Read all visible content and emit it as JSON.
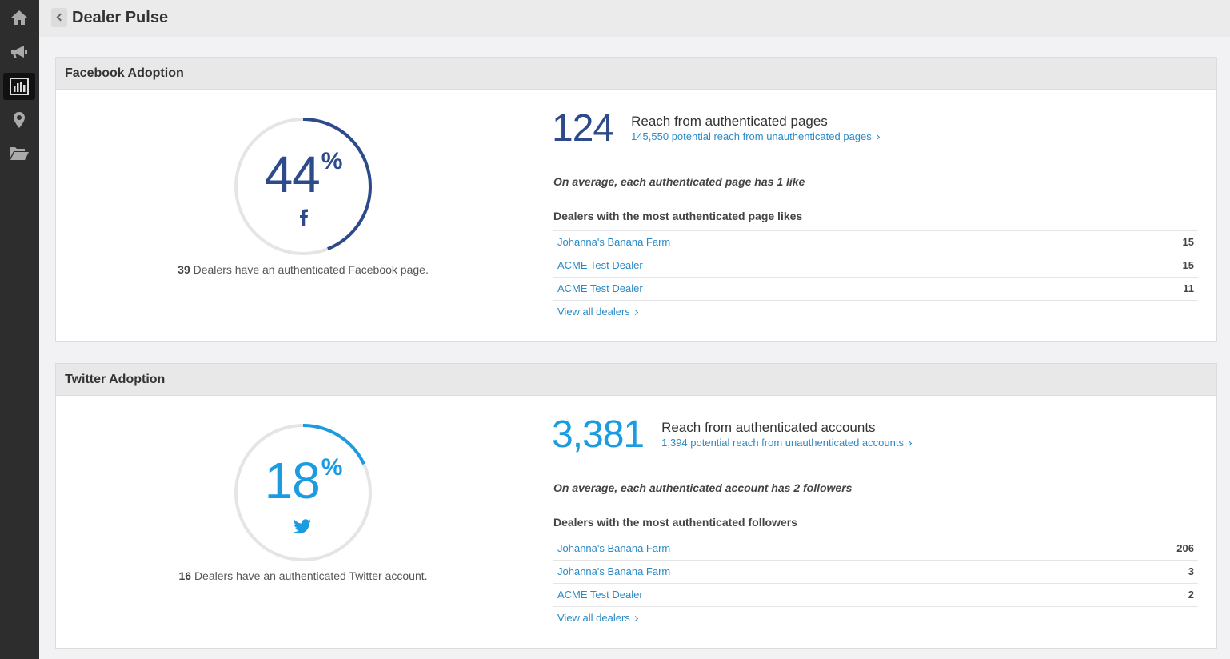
{
  "header": {
    "title": "Dealer Pulse"
  },
  "sections": [
    {
      "title": "Facebook Adoption",
      "color": "#2d4a8a",
      "percent": 44,
      "percent_sign": "%",
      "dealer_count": 39,
      "dealer_text": "Dealers have an authenticated Facebook page.",
      "reach": "124",
      "reach_label": "Reach from authenticated pages",
      "potential": "145,550 potential reach from unauthenticated pages",
      "average": "On average, each authenticated page has 1 like",
      "list_title": "Dealers with the most authenticated page likes",
      "dealers": [
        {
          "name": "Johanna's Banana Farm",
          "value": 15
        },
        {
          "name": "ACME Test Dealer",
          "value": 15
        },
        {
          "name": "ACME Test Dealer",
          "value": 11
        }
      ],
      "view_all": "View all dealers"
    },
    {
      "title": "Twitter Adoption",
      "color": "#1b9ce0",
      "percent": 18,
      "percent_sign": "%",
      "dealer_count": 16,
      "dealer_text": "Dealers have an authenticated Twitter account.",
      "reach": "3,381",
      "reach_label": "Reach from authenticated accounts",
      "potential": "1,394 potential reach from unauthenticated accounts",
      "average": "On average, each authenticated account has 2 followers",
      "list_title": "Dealers with the most authenticated followers",
      "dealers": [
        {
          "name": "Johanna's Banana Farm",
          "value": 206
        },
        {
          "name": "Johanna's Banana Farm",
          "value": 3
        },
        {
          "name": "ACME Test Dealer",
          "value": 2
        }
      ],
      "view_all": "View all dealers"
    }
  ]
}
